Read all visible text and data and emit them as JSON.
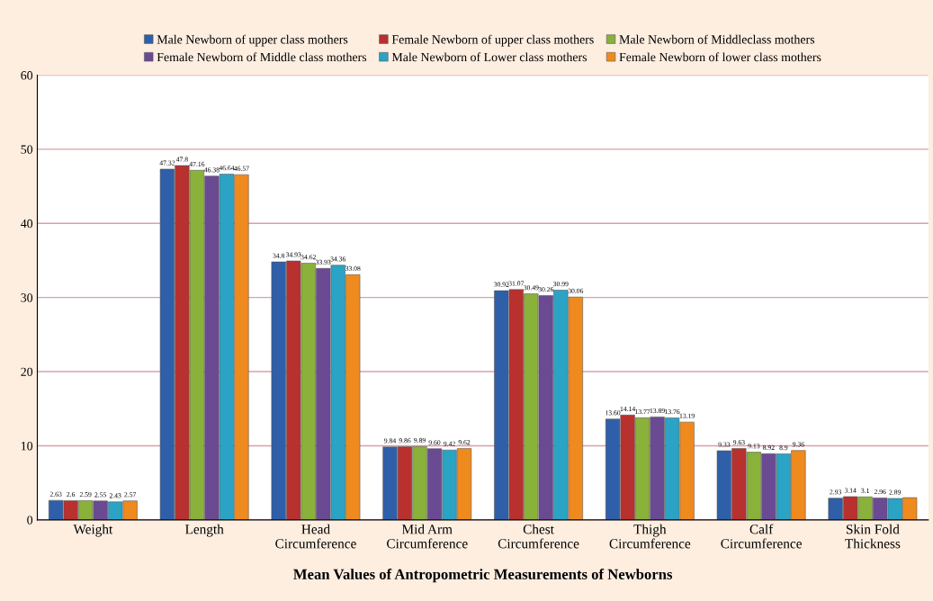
{
  "chart_data": {
    "type": "bar",
    "xlabel": "Mean Values of Antropometric Measurements of Newborns",
    "categories": [
      "Weight",
      "Length",
      "Head\nCircumference",
      "Mid Arm\nCircumference",
      "Chest\nCircumference",
      "Thigh\nCircumference",
      "Calf\nCircumference",
      "Skin Fold\nThickness"
    ],
    "series": [
      {
        "name": "Male Newborn of upper class mothers",
        "color": "#2f5fa8",
        "values": [
          2.63,
          47.32,
          34.8,
          9.84,
          30.92,
          13.6,
          9.33,
          2.93
        ],
        "value_labels": [
          "2.63",
          "47.32",
          "34.8",
          "9.84",
          "30.92",
          "13.60",
          "9.33",
          "2.93"
        ]
      },
      {
        "name": "Female Newborn of upper class mothers",
        "color": "#b8312f",
        "values": [
          2.6,
          47.8,
          34.93,
          9.86,
          31.07,
          14.14,
          9.63,
          3.14
        ],
        "value_labels": [
          "2.6",
          "47.8",
          "34.93",
          "9.86",
          "31.07",
          "14.14",
          "9.63",
          "3.14"
        ]
      },
      {
        "name": "Male Newborn of Middleclass mothers",
        "color": "#8ab13a",
        "values": [
          2.59,
          47.16,
          34.62,
          9.89,
          30.49,
          13.77,
          9.13,
          3.1
        ],
        "value_labels": [
          "2.59",
          "47.16",
          "34.62",
          "9.89",
          "30.49",
          "13.77",
          "9.13",
          "3.1"
        ]
      },
      {
        "name": "Female Newborn of Middle class mothers",
        "color": "#6b4a94",
        "values": [
          2.55,
          46.38,
          33.93,
          9.6,
          30.26,
          13.89,
          8.92,
          2.96
        ],
        "value_labels": [
          "2.55",
          "46.38",
          "33.93",
          "9.60",
          "30.26",
          "13.89",
          "8.92",
          "2.96"
        ]
      },
      {
        "name": "Male Newborn of Lower class mothers",
        "color": "#2aa3c4",
        "values": [
          2.43,
          46.64,
          34.36,
          9.42,
          30.99,
          13.76,
          8.9,
          2.89
        ],
        "value_labels": [
          "2.43",
          "46.64",
          "34.36",
          "9.42",
          "30.99",
          "13.76",
          "8.9",
          "2.89"
        ]
      },
      {
        "name": "Female Newborn of lower class mothers",
        "color": "#ef8a1f",
        "values": [
          2.57,
          46.57,
          33.08,
          9.62,
          30.06,
          13.19,
          9.36,
          3.0
        ],
        "value_labels": [
          "2.57",
          "46.57",
          "33.08",
          "9.62",
          "30.06",
          "13.19",
          "9.36",
          null
        ]
      }
    ],
    "ylim": [
      0,
      60
    ],
    "yticks": [
      0,
      10,
      20,
      30,
      40,
      50,
      60
    ],
    "grid": "y",
    "legend": "top"
  }
}
